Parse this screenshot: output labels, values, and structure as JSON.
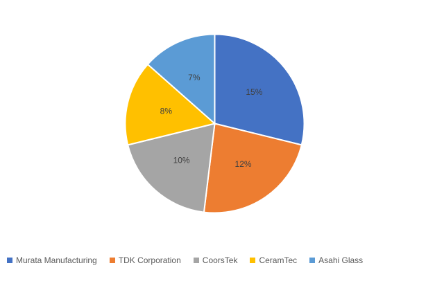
{
  "chart_data": {
    "type": "pie",
    "labels": [
      "Murata Manufacturing",
      "TDK Corporation",
      "CoorsTek",
      "CeramTec",
      "Asahi Glass"
    ],
    "values": [
      15,
      12,
      10,
      8,
      7
    ],
    "data_labels": [
      "15%",
      "12%",
      "10%",
      "8%",
      "7%"
    ],
    "colors": [
      "#4472C4",
      "#ED7D31",
      "#A5A5A5",
      "#FFC000",
      "#5B9BD5"
    ],
    "legend_position": "bottom"
  }
}
